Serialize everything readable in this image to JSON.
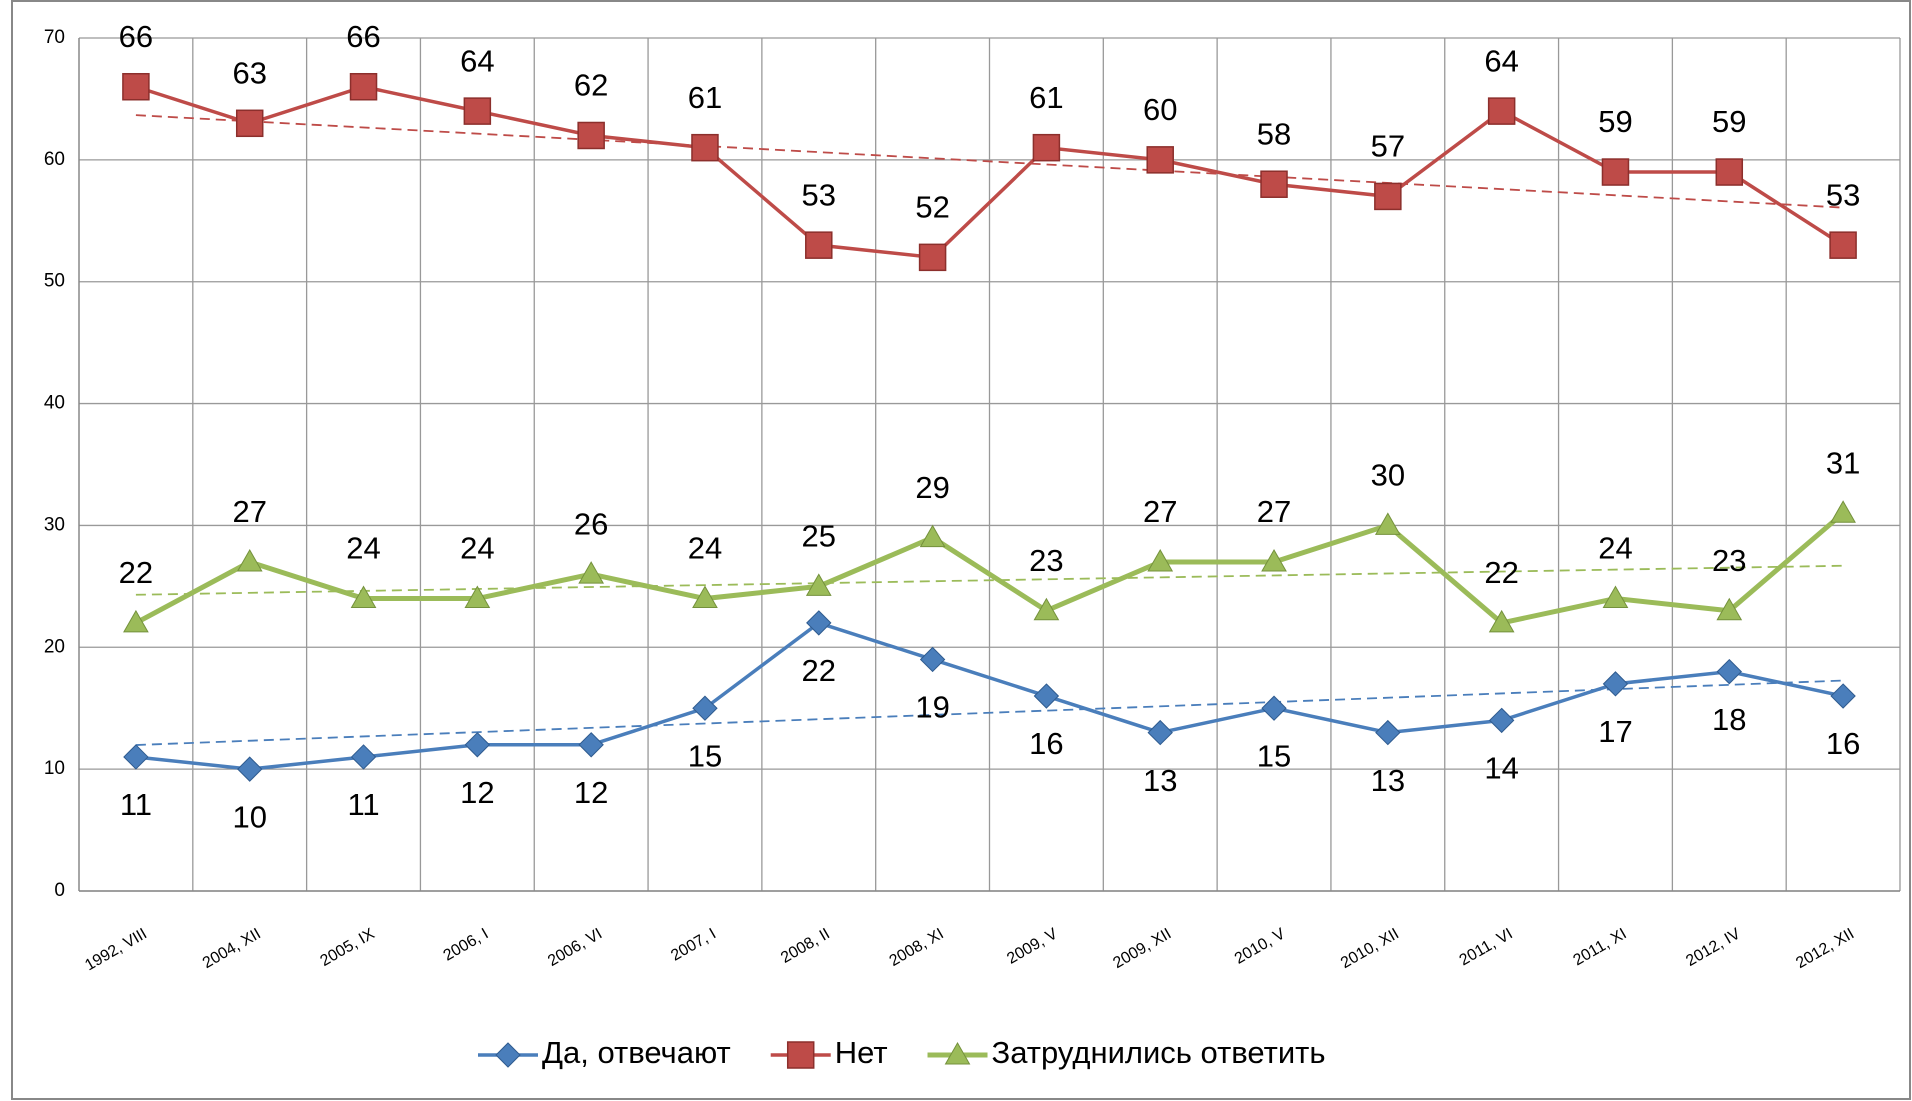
{
  "chart_data": {
    "type": "line",
    "categories": [
      "1992, VIII",
      "2004, XII",
      "2005, IX",
      "2006, I",
      "2006, VI",
      "2007, I",
      "2008, II",
      "2008, XI",
      "2009, V",
      "2009, XII",
      "2010, V",
      "2010, XII",
      "2011, VI",
      "2011, XI",
      "2012, IV",
      "2012, XII"
    ],
    "series": [
      {
        "name": "Да, отвечают",
        "color": "#4a7ebb",
        "marker": "diamond",
        "values": [
          11,
          10,
          11,
          12,
          12,
          15,
          22,
          19,
          16,
          13,
          15,
          13,
          14,
          17,
          18,
          16
        ]
      },
      {
        "name": "Нет",
        "color": "#be4b48",
        "marker": "square",
        "values": [
          66,
          63,
          66,
          64,
          62,
          61,
          53,
          52,
          61,
          60,
          58,
          57,
          64,
          59,
          59,
          53
        ]
      },
      {
        "name": "Затруднились ответить",
        "color": "#9bbb59",
        "marker": "triangle",
        "values": [
          22,
          27,
          24,
          24,
          26,
          24,
          25,
          29,
          23,
          27,
          27,
          30,
          22,
          24,
          23,
          31
        ]
      }
    ],
    "ylim": [
      0,
      70
    ],
    "yticks": [
      0,
      10,
      20,
      30,
      40,
      50,
      60,
      70
    ],
    "grid": true,
    "trendlines": true,
    "legend": "bottom"
  }
}
